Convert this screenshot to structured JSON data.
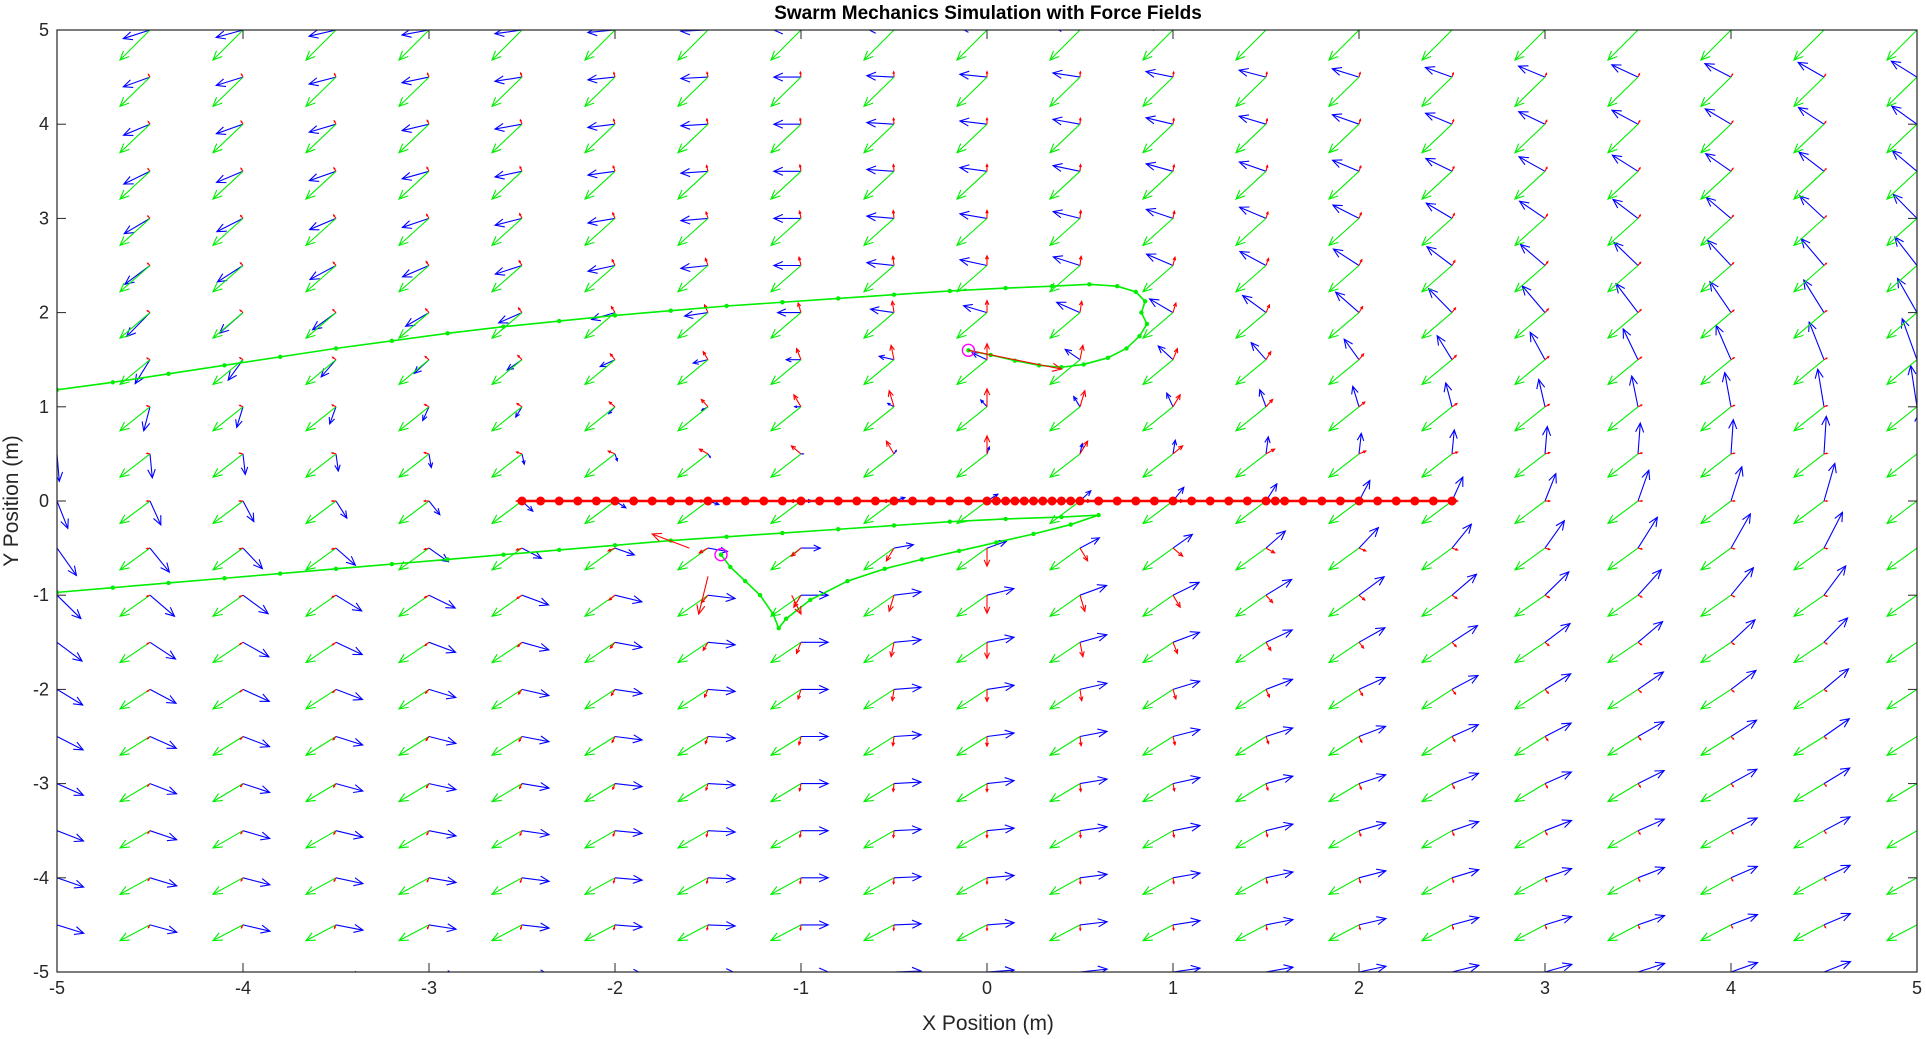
{
  "chart_data": {
    "type": "quiver",
    "title": "Swarm Mechanics Simulation with Force Fields",
    "xlabel": "X Position (m)",
    "ylabel": "Y Position (m)",
    "xlim": [
      -5,
      5
    ],
    "ylim": [
      -5,
      5
    ],
    "xticks": [
      -5,
      -4,
      -3,
      -2,
      -1,
      0,
      1,
      2,
      3,
      4,
      5
    ],
    "yticks": [
      -5,
      -4,
      -3,
      -2,
      -1,
      0,
      1,
      2,
      3,
      4,
      5
    ],
    "grid": false,
    "field": {
      "x_range": [
        -5,
        5
      ],
      "y_range": [
        -5,
        5
      ],
      "spacing": 0.5,
      "blue_field": {
        "color": "#0000ff",
        "description_values": "vortex field"
      },
      "green_field": {
        "color": "#00ee00"
      },
      "red_field": {
        "color": "#ff0000"
      }
    },
    "line_positions": {
      "color": "#ff0000",
      "y": 0,
      "x": [
        -2.5,
        -2.4,
        -2.3,
        -2.2,
        -2.1,
        -2.0,
        -1.9,
        -1.8,
        -1.7,
        -1.6,
        -1.5,
        -1.4,
        -1.3,
        -1.2,
        -1.1,
        -1.0,
        -0.9,
        -0.8,
        -0.7,
        -0.6,
        -0.5,
        -0.4,
        -0.3,
        -0.2,
        -0.1,
        0.0,
        0.05,
        0.1,
        0.15,
        0.2,
        0.25,
        0.3,
        0.35,
        0.4,
        0.45,
        0.5,
        0.6,
        0.7,
        0.8,
        0.9,
        1.0,
        1.1,
        1.2,
        1.3,
        1.4,
        1.5,
        1.55,
        1.6,
        1.7,
        1.8,
        1.9,
        2.0,
        2.1,
        2.2,
        2.3,
        2.4,
        2.5
      ]
    },
    "trajectories": [
      {
        "color": "#00ee00",
        "x": [
          -5.0,
          -4.7,
          -4.4,
          -4.1,
          -3.8,
          -3.5,
          -3.2,
          -2.9,
          -2.6,
          -2.3,
          -2.0,
          -1.7,
          -1.4,
          -1.1,
          -0.8,
          -0.5,
          -0.2,
          0.1,
          0.35,
          0.55,
          0.7,
          0.8,
          0.85,
          0.83,
          0.86,
          0.82,
          0.75,
          0.65,
          0.52,
          0.4,
          0.28,
          0.15,
          0.02,
          -0.1
        ],
        "y": [
          1.18,
          1.26,
          1.35,
          1.44,
          1.53,
          1.62,
          1.7,
          1.78,
          1.85,
          1.91,
          1.97,
          2.02,
          2.07,
          2.11,
          2.15,
          2.19,
          2.23,
          2.26,
          2.28,
          2.3,
          2.28,
          2.22,
          2.12,
          2.0,
          1.88,
          1.75,
          1.62,
          1.52,
          1.45,
          1.42,
          1.44,
          1.49,
          1.55,
          1.6
        ]
      },
      {
        "color": "#00ee00",
        "x": [
          -5.0,
          -4.7,
          -4.4,
          -4.1,
          -3.8,
          -3.5,
          -3.2,
          -2.9,
          -2.6,
          -2.3,
          -2.0,
          -1.7,
          -1.4,
          -1.1,
          -0.8,
          -0.5,
          -0.2,
          0.1,
          0.4,
          0.6,
          0.45,
          0.25,
          0.05,
          -0.15,
          -0.35,
          -0.55,
          -0.75,
          -0.95,
          -1.08,
          -1.12,
          -1.15,
          -1.22,
          -1.3,
          -1.38,
          -1.43
        ],
        "y": [
          -0.97,
          -0.92,
          -0.87,
          -0.82,
          -0.77,
          -0.72,
          -0.67,
          -0.62,
          -0.57,
          -0.52,
          -0.47,
          -0.42,
          -0.38,
          -0.34,
          -0.3,
          -0.26,
          -0.22,
          -0.19,
          -0.17,
          -0.15,
          -0.25,
          -0.35,
          -0.44,
          -0.53,
          -0.62,
          -0.72,
          -0.85,
          -1.05,
          -1.25,
          -1.35,
          -1.2,
          -1.0,
          -0.85,
          -0.7,
          -0.57
        ]
      }
    ],
    "agents": [
      {
        "x": -0.1,
        "y": 1.6,
        "marker": "circle",
        "color": "#ff00ff"
      },
      {
        "x": -1.43,
        "y": -0.57,
        "marker": "circle",
        "color": "#ff00ff"
      }
    ],
    "agent_forces": [
      {
        "from": [
          -0.1,
          1.6
        ],
        "to": [
          0.4,
          1.4
        ],
        "color": "#ff0000"
      },
      {
        "from": [
          -1.6,
          -0.5
        ],
        "to": [
          -1.8,
          -0.35
        ],
        "color": "#ff0000"
      },
      {
        "from": [
          -1.5,
          -0.8
        ],
        "to": [
          -1.55,
          -1.2
        ],
        "color": "#ff0000"
      },
      {
        "from": [
          -1.05,
          -1.0
        ],
        "to": [
          -1.0,
          -1.2
        ],
        "color": "#ff0000"
      }
    ]
  }
}
